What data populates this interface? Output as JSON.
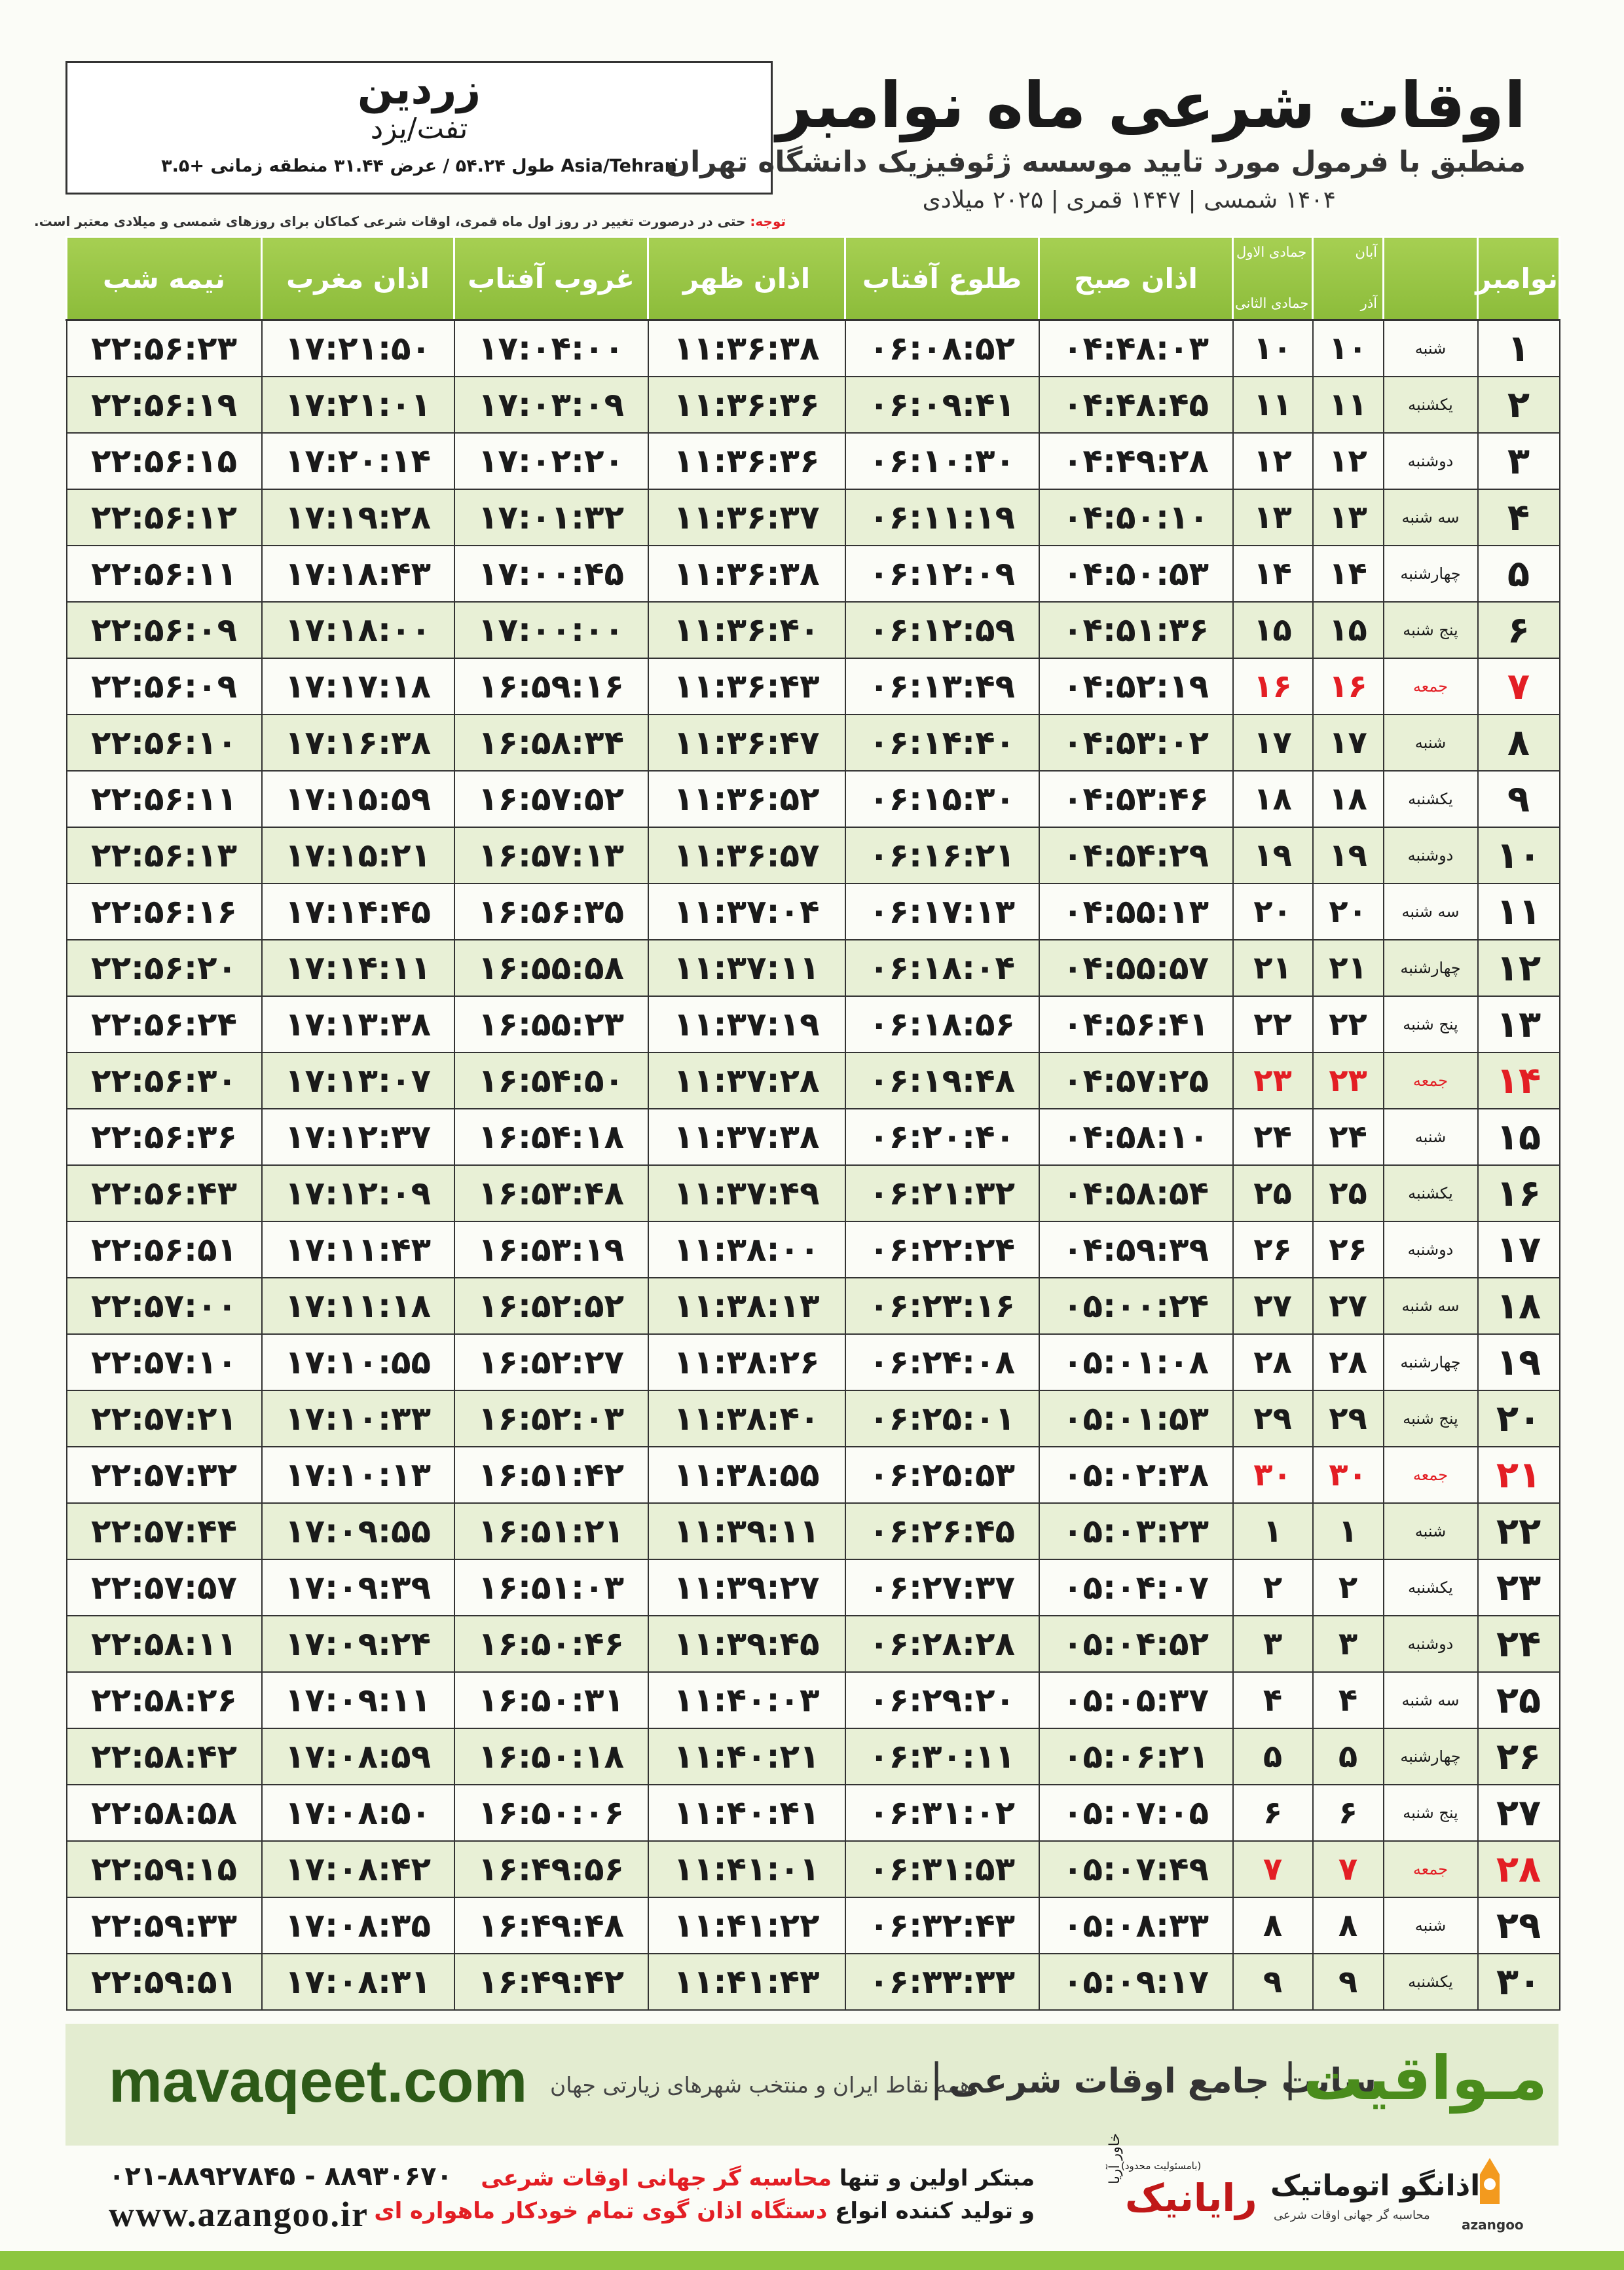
{
  "header": {
    "location": {
      "name": "زردین",
      "region": "تفت/یزد",
      "coords": "طول ۵۴.۲۴ / عرض ۳۱.۴۴ منطقه زمانی +۳.۵ Asia/Tehran"
    },
    "title": "اوقات شرعی ماه نوامبر",
    "subtitle": "منطبق با فرمول مورد تایید موسسه ژئوفیزیک دانشگاه تهران",
    "dates": "۱۴۰۴ شمسی | ۱۴۴۷ قمری | ۲۰۲۵ میلادی",
    "note_label": "توجه:",
    "note": "حتی در درصورت تغییر در روز اول ماه قمری، اوقات شرعی کماکان برای روزهای شمسی و میلادی معتبر است."
  },
  "table": {
    "day_header": "نوامبر",
    "date_headers": {
      "shamsi_top": "آبان",
      "hijri_top": "جمادی الاول",
      "shamsi_bottom": "آذر",
      "hijri_bottom": "جمادی الثانی"
    },
    "columns": [
      "اذان صبح",
      "طلوع آفتاب",
      "اذان ظهر",
      "غروب آفتاب",
      "اذان مغرب",
      "نیمه شب"
    ],
    "rows": [
      {
        "color": "#1a1a1a",
        "cells": [
          "۱",
          "شنبه",
          "۱۰",
          "۱۰",
          "۰۴:۴۸:۰۳",
          "۰۶:۰۸:۵۲",
          "۱۱:۳۶:۳۸",
          "۱۷:۰۴:۰۰",
          "۱۷:۲۱:۵۰",
          "۲۲:۵۶:۲۳"
        ]
      },
      {
        "color": "#1a1a1a",
        "cells": [
          "۲",
          "یکشنبه",
          "۱۱",
          "۱۱",
          "۰۴:۴۸:۴۵",
          "۰۶:۰۹:۴۱",
          "۱۱:۳۶:۳۶",
          "۱۷:۰۳:۰۹",
          "۱۷:۲۱:۰۱",
          "۲۲:۵۶:۱۹"
        ]
      },
      {
        "color": "#1a1a1a",
        "cells": [
          "۳",
          "دوشنبه",
          "۱۲",
          "۱۲",
          "۰۴:۴۹:۲۸",
          "۰۶:۱۰:۳۰",
          "۱۱:۳۶:۳۶",
          "۱۷:۰۲:۲۰",
          "۱۷:۲۰:۱۴",
          "۲۲:۵۶:۱۵"
        ]
      },
      {
        "color": "#1a1a1a",
        "cells": [
          "۴",
          "سه شنبه",
          "۱۳",
          "۱۳",
          "۰۴:۵۰:۱۰",
          "۰۶:۱۱:۱۹",
          "۱۱:۳۶:۳۷",
          "۱۷:۰۱:۳۲",
          "۱۷:۱۹:۲۸",
          "۲۲:۵۶:۱۲"
        ]
      },
      {
        "color": "#1a1a1a",
        "cells": [
          "۵",
          "چهارشنبه",
          "۱۴",
          "۱۴",
          "۰۴:۵۰:۵۳",
          "۰۶:۱۲:۰۹",
          "۱۱:۳۶:۳۸",
          "۱۷:۰۰:۴۵",
          "۱۷:۱۸:۴۳",
          "۲۲:۵۶:۱۱"
        ]
      },
      {
        "color": "#1a1a1a",
        "cells": [
          "۶",
          "پنج شنبه",
          "۱۵",
          "۱۵",
          "۰۴:۵۱:۳۶",
          "۰۶:۱۲:۵۹",
          "۱۱:۳۶:۴۰",
          "۱۷:۰۰:۰۰",
          "۱۷:۱۸:۰۰",
          "۲۲:۵۶:۰۹"
        ]
      },
      {
        "color": "#e31e24",
        "cells": [
          "۷",
          "جمعه",
          "۱۶",
          "۱۶",
          "۰۴:۵۲:۱۹",
          "۰۶:۱۳:۴۹",
          "۱۱:۳۶:۴۳",
          "۱۶:۵۹:۱۶",
          "۱۷:۱۷:۱۸",
          "۲۲:۵۶:۰۹"
        ]
      },
      {
        "color": "#1a1a1a",
        "cells": [
          "۸",
          "شنبه",
          "۱۷",
          "۱۷",
          "۰۴:۵۳:۰۲",
          "۰۶:۱۴:۴۰",
          "۱۱:۳۶:۴۷",
          "۱۶:۵۸:۳۴",
          "۱۷:۱۶:۳۸",
          "۲۲:۵۶:۱۰"
        ]
      },
      {
        "color": "#1a1a1a",
        "cells": [
          "۹",
          "یکشنبه",
          "۱۸",
          "۱۸",
          "۰۴:۵۳:۴۶",
          "۰۶:۱۵:۳۰",
          "۱۱:۳۶:۵۲",
          "۱۶:۵۷:۵۲",
          "۱۷:۱۵:۵۹",
          "۲۲:۵۶:۱۱"
        ]
      },
      {
        "color": "#1a1a1a",
        "cells": [
          "۱۰",
          "دوشنبه",
          "۱۹",
          "۱۹",
          "۰۴:۵۴:۲۹",
          "۰۶:۱۶:۲۱",
          "۱۱:۳۶:۵۷",
          "۱۶:۵۷:۱۳",
          "۱۷:۱۵:۲۱",
          "۲۲:۵۶:۱۳"
        ]
      },
      {
        "color": "#1a1a1a",
        "cells": [
          "۱۱",
          "سه شنبه",
          "۲۰",
          "۲۰",
          "۰۴:۵۵:۱۳",
          "۰۶:۱۷:۱۳",
          "۱۱:۳۷:۰۴",
          "۱۶:۵۶:۳۵",
          "۱۷:۱۴:۴۵",
          "۲۲:۵۶:۱۶"
        ]
      },
      {
        "color": "#1a1a1a",
        "cells": [
          "۱۲",
          "چهارشنبه",
          "۲۱",
          "۲۱",
          "۰۴:۵۵:۵۷",
          "۰۶:۱۸:۰۴",
          "۱۱:۳۷:۱۱",
          "۱۶:۵۵:۵۸",
          "۱۷:۱۴:۱۱",
          "۲۲:۵۶:۲۰"
        ]
      },
      {
        "color": "#1a1a1a",
        "cells": [
          "۱۳",
          "پنج شنبه",
          "۲۲",
          "۲۲",
          "۰۴:۵۶:۴۱",
          "۰۶:۱۸:۵۶",
          "۱۱:۳۷:۱۹",
          "۱۶:۵۵:۲۳",
          "۱۷:۱۳:۳۸",
          "۲۲:۵۶:۲۴"
        ]
      },
      {
        "color": "#e31e24",
        "cells": [
          "۱۴",
          "جمعه",
          "۲۳",
          "۲۳",
          "۰۴:۵۷:۲۵",
          "۰۶:۱۹:۴۸",
          "۱۱:۳۷:۲۸",
          "۱۶:۵۴:۵۰",
          "۱۷:۱۳:۰۷",
          "۲۲:۵۶:۳۰"
        ]
      },
      {
        "color": "#1a1a1a",
        "cells": [
          "۱۵",
          "شنبه",
          "۲۴",
          "۲۴",
          "۰۴:۵۸:۱۰",
          "۰۶:۲۰:۴۰",
          "۱۱:۳۷:۳۸",
          "۱۶:۵۴:۱۸",
          "۱۷:۱۲:۳۷",
          "۲۲:۵۶:۳۶"
        ]
      },
      {
        "color": "#1a1a1a",
        "cells": [
          "۱۶",
          "یکشنبه",
          "۲۵",
          "۲۵",
          "۰۴:۵۸:۵۴",
          "۰۶:۲۱:۳۲",
          "۱۱:۳۷:۴۹",
          "۱۶:۵۳:۴۸",
          "۱۷:۱۲:۰۹",
          "۲۲:۵۶:۴۳"
        ]
      },
      {
        "color": "#1a1a1a",
        "cells": [
          "۱۷",
          "دوشنبه",
          "۲۶",
          "۲۶",
          "۰۴:۵۹:۳۹",
          "۰۶:۲۲:۲۴",
          "۱۱:۳۸:۰۰",
          "۱۶:۵۳:۱۹",
          "۱۷:۱۱:۴۳",
          "۲۲:۵۶:۵۱"
        ]
      },
      {
        "color": "#1a1a1a",
        "cells": [
          "۱۸",
          "سه شنبه",
          "۲۷",
          "۲۷",
          "۰۵:۰۰:۲۴",
          "۰۶:۲۳:۱۶",
          "۱۱:۳۸:۱۳",
          "۱۶:۵۲:۵۲",
          "۱۷:۱۱:۱۸",
          "۲۲:۵۷:۰۰"
        ]
      },
      {
        "color": "#1a1a1a",
        "cells": [
          "۱۹",
          "چهارشنبه",
          "۲۸",
          "۲۸",
          "۰۵:۰۱:۰۸",
          "۰۶:۲۴:۰۸",
          "۱۱:۳۸:۲۶",
          "۱۶:۵۲:۲۷",
          "۱۷:۱۰:۵۵",
          "۲۲:۵۷:۱۰"
        ]
      },
      {
        "color": "#1a1a1a",
        "cells": [
          "۲۰",
          "پنج شنبه",
          "۲۹",
          "۲۹",
          "۰۵:۰۱:۵۳",
          "۰۶:۲۵:۰۱",
          "۱۱:۳۸:۴۰",
          "۱۶:۵۲:۰۳",
          "۱۷:۱۰:۳۳",
          "۲۲:۵۷:۲۱"
        ]
      },
      {
        "color": "#e31e24",
        "cells": [
          "۲۱",
          "جمعه",
          "۳۰",
          "۳۰",
          "۰۵:۰۲:۳۸",
          "۰۶:۲۵:۵۳",
          "۱۱:۳۸:۵۵",
          "۱۶:۵۱:۴۲",
          "۱۷:۱۰:۱۳",
          "۲۲:۵۷:۳۲"
        ]
      },
      {
        "color": "#1a1a1a",
        "cells": [
          "۲۲",
          "شنبه",
          "۱",
          "۱",
          "۰۵:۰۳:۲۳",
          "۰۶:۲۶:۴۵",
          "۱۱:۳۹:۱۱",
          "۱۶:۵۱:۲۱",
          "۱۷:۰۹:۵۵",
          "۲۲:۵۷:۴۴"
        ]
      },
      {
        "color": "#1a1a1a",
        "cells": [
          "۲۳",
          "یکشنبه",
          "۲",
          "۲",
          "۰۵:۰۴:۰۷",
          "۰۶:۲۷:۳۷",
          "۱۱:۳۹:۲۷",
          "۱۶:۵۱:۰۳",
          "۱۷:۰۹:۳۹",
          "۲۲:۵۷:۵۷"
        ]
      },
      {
        "color": "#1a1a1a",
        "cells": [
          "۲۴",
          "دوشنبه",
          "۳",
          "۳",
          "۰۵:۰۴:۵۲",
          "۰۶:۲۸:۲۸",
          "۱۱:۳۹:۴۵",
          "۱۶:۵۰:۴۶",
          "۱۷:۰۹:۲۴",
          "۲۲:۵۸:۱۱"
        ]
      },
      {
        "color": "#1a1a1a",
        "cells": [
          "۲۵",
          "سه شنبه",
          "۴",
          "۴",
          "۰۵:۰۵:۳۷",
          "۰۶:۲۹:۲۰",
          "۱۱:۴۰:۰۳",
          "۱۶:۵۰:۳۱",
          "۱۷:۰۹:۱۱",
          "۲۲:۵۸:۲۶"
        ]
      },
      {
        "color": "#1a1a1a",
        "cells": [
          "۲۶",
          "چهارشنبه",
          "۵",
          "۵",
          "۰۵:۰۶:۲۱",
          "۰۶:۳۰:۱۱",
          "۱۱:۴۰:۲۱",
          "۱۶:۵۰:۱۸",
          "۱۷:۰۸:۵۹",
          "۲۲:۵۸:۴۲"
        ]
      },
      {
        "color": "#1a1a1a",
        "cells": [
          "۲۷",
          "پنج شنبه",
          "۶",
          "۶",
          "۰۵:۰۷:۰۵",
          "۰۶:۳۱:۰۲",
          "۱۱:۴۰:۴۱",
          "۱۶:۵۰:۰۶",
          "۱۷:۰۸:۵۰",
          "۲۲:۵۸:۵۸"
        ]
      },
      {
        "color": "#e31e24",
        "cells": [
          "۲۸",
          "جمعه",
          "۷",
          "۷",
          "۰۵:۰۷:۴۹",
          "۰۶:۳۱:۵۳",
          "۱۱:۴۱:۰۱",
          "۱۶:۴۹:۵۶",
          "۱۷:۰۸:۴۲",
          "۲۲:۵۹:۱۵"
        ]
      },
      {
        "color": "#1a1a1a",
        "cells": [
          "۲۹",
          "شنبه",
          "۸",
          "۸",
          "۰۵:۰۸:۳۳",
          "۰۶:۳۲:۴۳",
          "۱۱:۴۱:۲۲",
          "۱۶:۴۹:۴۸",
          "۱۷:۰۸:۳۵",
          "۲۲:۵۹:۳۳"
        ]
      },
      {
        "color": "#1a1a1a",
        "cells": [
          "۳۰",
          "یکشنبه",
          "۹",
          "۹",
          "۰۵:۰۹:۱۷",
          "۰۶:۳۳:۳۳",
          "۱۱:۴۱:۴۳",
          "۱۶:۴۹:۴۲",
          "۱۷:۰۸:۳۱",
          "۲۲:۵۹:۵۱"
        ]
      }
    ]
  },
  "banner": {
    "brand": "مـواقیت",
    "tagline": "سایت جامع اوقات شرعی",
    "coverage": "همه نقاط ایران و منتخب شهرهای زیارتی جهان",
    "url": "mavaqeet.com"
  },
  "footer": {
    "phones": "۰۲۱-۸۸۹۲۷۸۴۵ - ۸۸۹۳۰۶۷۰",
    "website": "www.azangoo.ir",
    "line1_start": "مبتکر اولین و تنها",
    "line1_highlight": "محاسبه گر جهانی اوقات شرعی",
    "line2_start": "و تولید کننده انواع",
    "line2_highlight": "دستگاه اذان گوی تمام خودکار ماهواره ای",
    "rayanik_note": "(بامسئولیت محدود)",
    "rayanik": "رایانیک",
    "rayanik_sub": "خاور آریا",
    "azangoo_name": "اذانگو اتوماتیک",
    "azangoo_sub": "محاسبه گر جهانی اوقات شرعی",
    "azangoo_latin": "azangoo"
  }
}
